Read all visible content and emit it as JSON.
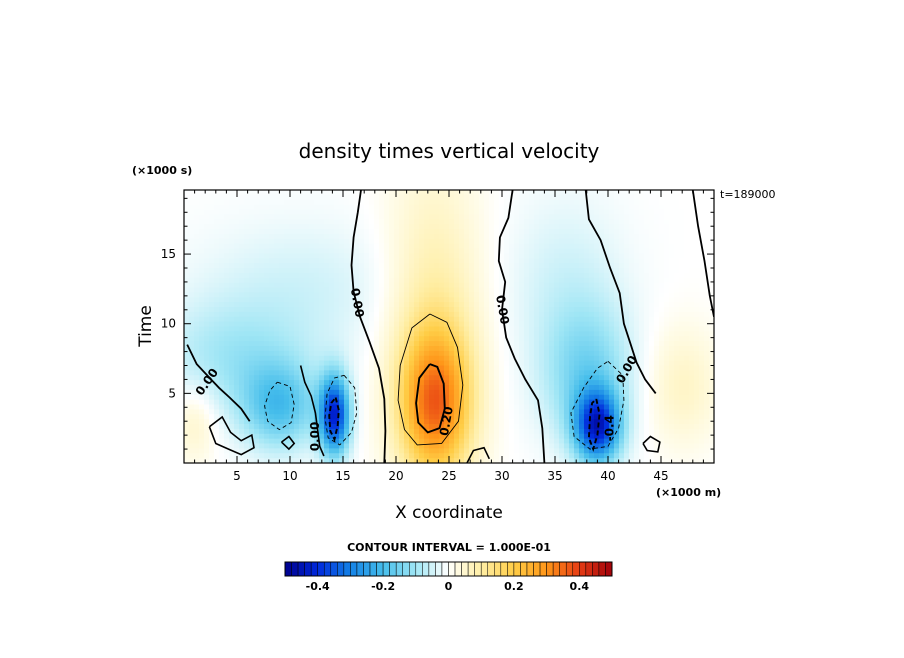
{
  "chart_data": {
    "type": "heatmap",
    "title": "density times vertical velocity",
    "xlabel": "X coordinate",
    "ylabel": "Time",
    "x_units": "(×1000 m)",
    "y_units": "(×1000 s)",
    "time_stamp": "t=189000",
    "xlim": [
      0,
      50
    ],
    "ylim": [
      0,
      19.6
    ],
    "x_ticks": [
      5,
      10,
      15,
      20,
      25,
      30,
      35,
      40,
      45
    ],
    "y_ticks": [
      5,
      10,
      15
    ],
    "contour_interval_text": "CONTOUR INTERVAL = 1.000E-01",
    "colorbar": {
      "range": [
        -0.5,
        0.5
      ],
      "ticks": [
        -0.4,
        -0.2,
        0,
        0.2,
        0.4
      ],
      "tick_labels": [
        "-0.4",
        "-0.2",
        "0",
        "0.2",
        "0.4"
      ]
    },
    "contour_labels": [
      {
        "text": "0.00",
        "x": 2.2,
        "y": 5.8,
        "angle": -55
      },
      {
        "text": "0.00",
        "x": 16.3,
        "y": 11.5,
        "angle": 80
      },
      {
        "text": "0.00",
        "x": 12.4,
        "y": 1.9,
        "angle": -90
      },
      {
        "text": "0.20",
        "x": 24.8,
        "y": 3.0,
        "angle": -80
      },
      {
        "text": "0.00",
        "x": 30.0,
        "y": 11.0,
        "angle": 80
      },
      {
        "text": "0.00",
        "x": 41.8,
        "y": 6.7,
        "angle": -60
      },
      {
        "text": "-0.4",
        "x": 40.2,
        "y": 2.5,
        "angle": -90
      }
    ],
    "features": [
      {
        "x": 14.2,
        "y": 3.4,
        "sx": 1.0,
        "sy": 2.0,
        "v": -0.4
      },
      {
        "x": 9.0,
        "y": 4.0,
        "sx": 2.6,
        "sy": 2.2,
        "v": -0.18
      },
      {
        "x": 4.5,
        "y": 7.5,
        "sx": 5.0,
        "sy": 2.8,
        "v": -0.09
      },
      {
        "x": 11.0,
        "y": 12.5,
        "sx": 7.0,
        "sy": 3.5,
        "v": -0.05
      },
      {
        "x": 23.7,
        "y": 4.2,
        "sx": 2.4,
        "sy": 3.8,
        "v": 0.33
      },
      {
        "x": 23.5,
        "y": 12.0,
        "sx": 3.2,
        "sy": 6.5,
        "v": 0.09
      },
      {
        "x": 39.0,
        "y": 2.6,
        "sx": 1.5,
        "sy": 1.8,
        "v": -0.38
      },
      {
        "x": 38.0,
        "y": 6.2,
        "sx": 3.0,
        "sy": 3.5,
        "v": -0.14
      },
      {
        "x": 36.0,
        "y": 13.0,
        "sx": 4.0,
        "sy": 4.5,
        "v": -0.05
      },
      {
        "x": 47.0,
        "y": 5.5,
        "sx": 2.5,
        "sy": 3.0,
        "v": 0.06
      },
      {
        "x": 1.0,
        "y": 3.0,
        "sx": 1.5,
        "sy": 2.0,
        "v": 0.06
      }
    ],
    "zero_contours": [
      [
        [
          0.3,
          8.5
        ],
        [
          1.2,
          7.1
        ],
        [
          2.3,
          6.2
        ],
        [
          3.3,
          5.4
        ],
        [
          4.3,
          4.7
        ],
        [
          5.4,
          3.9
        ],
        [
          6.2,
          3.0
        ]
      ],
      [
        [
          16.7,
          19.6
        ],
        [
          16.4,
          18.0
        ],
        [
          16.0,
          16.2
        ],
        [
          15.8,
          14.2
        ],
        [
          16.0,
          12.3
        ],
        [
          16.6,
          10.5
        ],
        [
          17.5,
          8.7
        ],
        [
          18.4,
          6.8
        ],
        [
          18.9,
          4.6
        ],
        [
          19.0,
          2.3
        ],
        [
          18.9,
          0
        ]
      ],
      [
        [
          31.0,
          19.6
        ],
        [
          30.6,
          17.6
        ],
        [
          29.8,
          16.2
        ],
        [
          29.7,
          14.5
        ],
        [
          30.3,
          13.0
        ],
        [
          30.0,
          11.0
        ],
        [
          30.4,
          9.0
        ],
        [
          31.2,
          7.5
        ],
        [
          32.2,
          6.0
        ],
        [
          33.4,
          4.5
        ],
        [
          33.8,
          2.5
        ],
        [
          34.0,
          0
        ]
      ],
      [
        [
          37.9,
          19.6
        ],
        [
          38.2,
          17.5
        ],
        [
          39.3,
          16.0
        ],
        [
          40.2,
          14.0
        ],
        [
          41.1,
          12.2
        ],
        [
          41.5,
          10.0
        ],
        [
          42.1,
          8.6
        ],
        [
          42.7,
          7.2
        ],
        [
          43.5,
          6.0
        ],
        [
          44.5,
          5.0
        ]
      ],
      [
        [
          48.0,
          19.6
        ],
        [
          48.5,
          17.0
        ],
        [
          49.1,
          14.5
        ],
        [
          49.6,
          12.0
        ],
        [
          50.0,
          10.5
        ]
      ]
    ],
    "other_contours": [
      {
        "style": "thin",
        "path": [
          [
            23.2,
            10.7
          ],
          [
            21.5,
            9.7
          ],
          [
            20.4,
            7.0
          ],
          [
            20.2,
            4.5
          ],
          [
            20.8,
            2.4
          ],
          [
            22.0,
            1.3
          ],
          [
            24.3,
            1.4
          ],
          [
            25.9,
            3.0
          ],
          [
            26.3,
            5.6
          ],
          [
            25.8,
            8.3
          ],
          [
            24.8,
            10.1
          ],
          [
            23.2,
            10.7
          ]
        ]
      },
      {
        "style": "bold",
        "path": [
          [
            23.2,
            7.1
          ],
          [
            22.2,
            6.1
          ],
          [
            21.9,
            4.3
          ],
          [
            22.1,
            2.9
          ],
          [
            23.0,
            2.2
          ],
          [
            24.1,
            2.5
          ],
          [
            24.6,
            3.9
          ],
          [
            24.5,
            5.7
          ],
          [
            23.9,
            6.9
          ],
          [
            23.2,
            7.1
          ]
        ]
      },
      {
        "style": "bold-dash",
        "path": [
          [
            14.3,
            4.7
          ],
          [
            14.6,
            3.8
          ],
          [
            14.5,
            2.7
          ],
          [
            14.2,
            1.7
          ],
          [
            13.8,
            2.3
          ],
          [
            13.7,
            3.4
          ],
          [
            13.9,
            4.3
          ],
          [
            14.3,
            4.7
          ]
        ]
      },
      {
        "style": "dash",
        "path": [
          [
            15.1,
            6.3
          ],
          [
            16.1,
            5.4
          ],
          [
            16.3,
            3.6
          ],
          [
            15.8,
            2.2
          ],
          [
            14.7,
            1.3
          ],
          [
            13.6,
            1.8
          ],
          [
            13.3,
            3.2
          ],
          [
            13.5,
            5.0
          ],
          [
            14.2,
            6.1
          ],
          [
            15.1,
            6.3
          ]
        ]
      },
      {
        "style": "dash",
        "path": [
          [
            8.8,
            5.8
          ],
          [
            10.0,
            5.5
          ],
          [
            10.4,
            4.2
          ],
          [
            10.1,
            2.9
          ],
          [
            9.0,
            2.4
          ],
          [
            7.9,
            3.0
          ],
          [
            7.6,
            4.1
          ],
          [
            8.1,
            5.2
          ],
          [
            8.8,
            5.8
          ]
        ]
      },
      {
        "style": "bold-dash",
        "path": [
          [
            38.9,
            4.6
          ],
          [
            39.2,
            3.5
          ],
          [
            39.0,
            2.0
          ],
          [
            38.6,
            1.0
          ],
          [
            38.2,
            1.8
          ],
          [
            38.3,
            3.3
          ],
          [
            38.5,
            4.3
          ],
          [
            38.9,
            4.6
          ]
        ]
      },
      {
        "style": "dash",
        "path": [
          [
            40.0,
            7.3
          ],
          [
            41.4,
            6.3
          ],
          [
            41.5,
            4.5
          ],
          [
            41.0,
            2.5
          ],
          [
            40.0,
            1.2
          ],
          [
            38.3,
            1.0
          ],
          [
            36.8,
            1.9
          ],
          [
            36.5,
            3.6
          ],
          [
            37.7,
            5.4
          ],
          [
            39.0,
            6.8
          ],
          [
            40.0,
            7.3
          ]
        ]
      },
      {
        "style": "solid",
        "path": [
          [
            11.0,
            7.0
          ],
          [
            11.4,
            5.8
          ],
          [
            12.0,
            4.8
          ],
          [
            12.4,
            3.6
          ],
          [
            12.6,
            2.4
          ],
          [
            12.8,
            1.2
          ],
          [
            13.2,
            0.5
          ]
        ]
      },
      {
        "style": "solid",
        "path": [
          [
            2.4,
            2.6
          ],
          [
            3.6,
            3.3
          ],
          [
            4.4,
            2.2
          ],
          [
            5.4,
            1.6
          ],
          [
            6.4,
            2.0
          ],
          [
            6.6,
            1.1
          ],
          [
            5.4,
            0.6
          ],
          [
            4.2,
            1.0
          ],
          [
            3.0,
            1.4
          ],
          [
            2.4,
            2.6
          ]
        ]
      },
      {
        "style": "solid",
        "path": [
          [
            9.2,
            1.5
          ],
          [
            9.9,
            1.9
          ],
          [
            10.4,
            1.4
          ],
          [
            9.9,
            1.0
          ],
          [
            9.2,
            1.5
          ]
        ]
      },
      {
        "style": "solid",
        "path": [
          [
            26.7,
            0
          ],
          [
            27.3,
            0.9
          ],
          [
            28.3,
            1.1
          ],
          [
            28.8,
            0.3
          ]
        ]
      },
      {
        "style": "solid",
        "path": [
          [
            43.3,
            1.4
          ],
          [
            44.0,
            1.9
          ],
          [
            44.9,
            1.5
          ],
          [
            44.7,
            0.8
          ],
          [
            43.7,
            0.9
          ],
          [
            43.3,
            1.4
          ]
        ]
      }
    ]
  }
}
